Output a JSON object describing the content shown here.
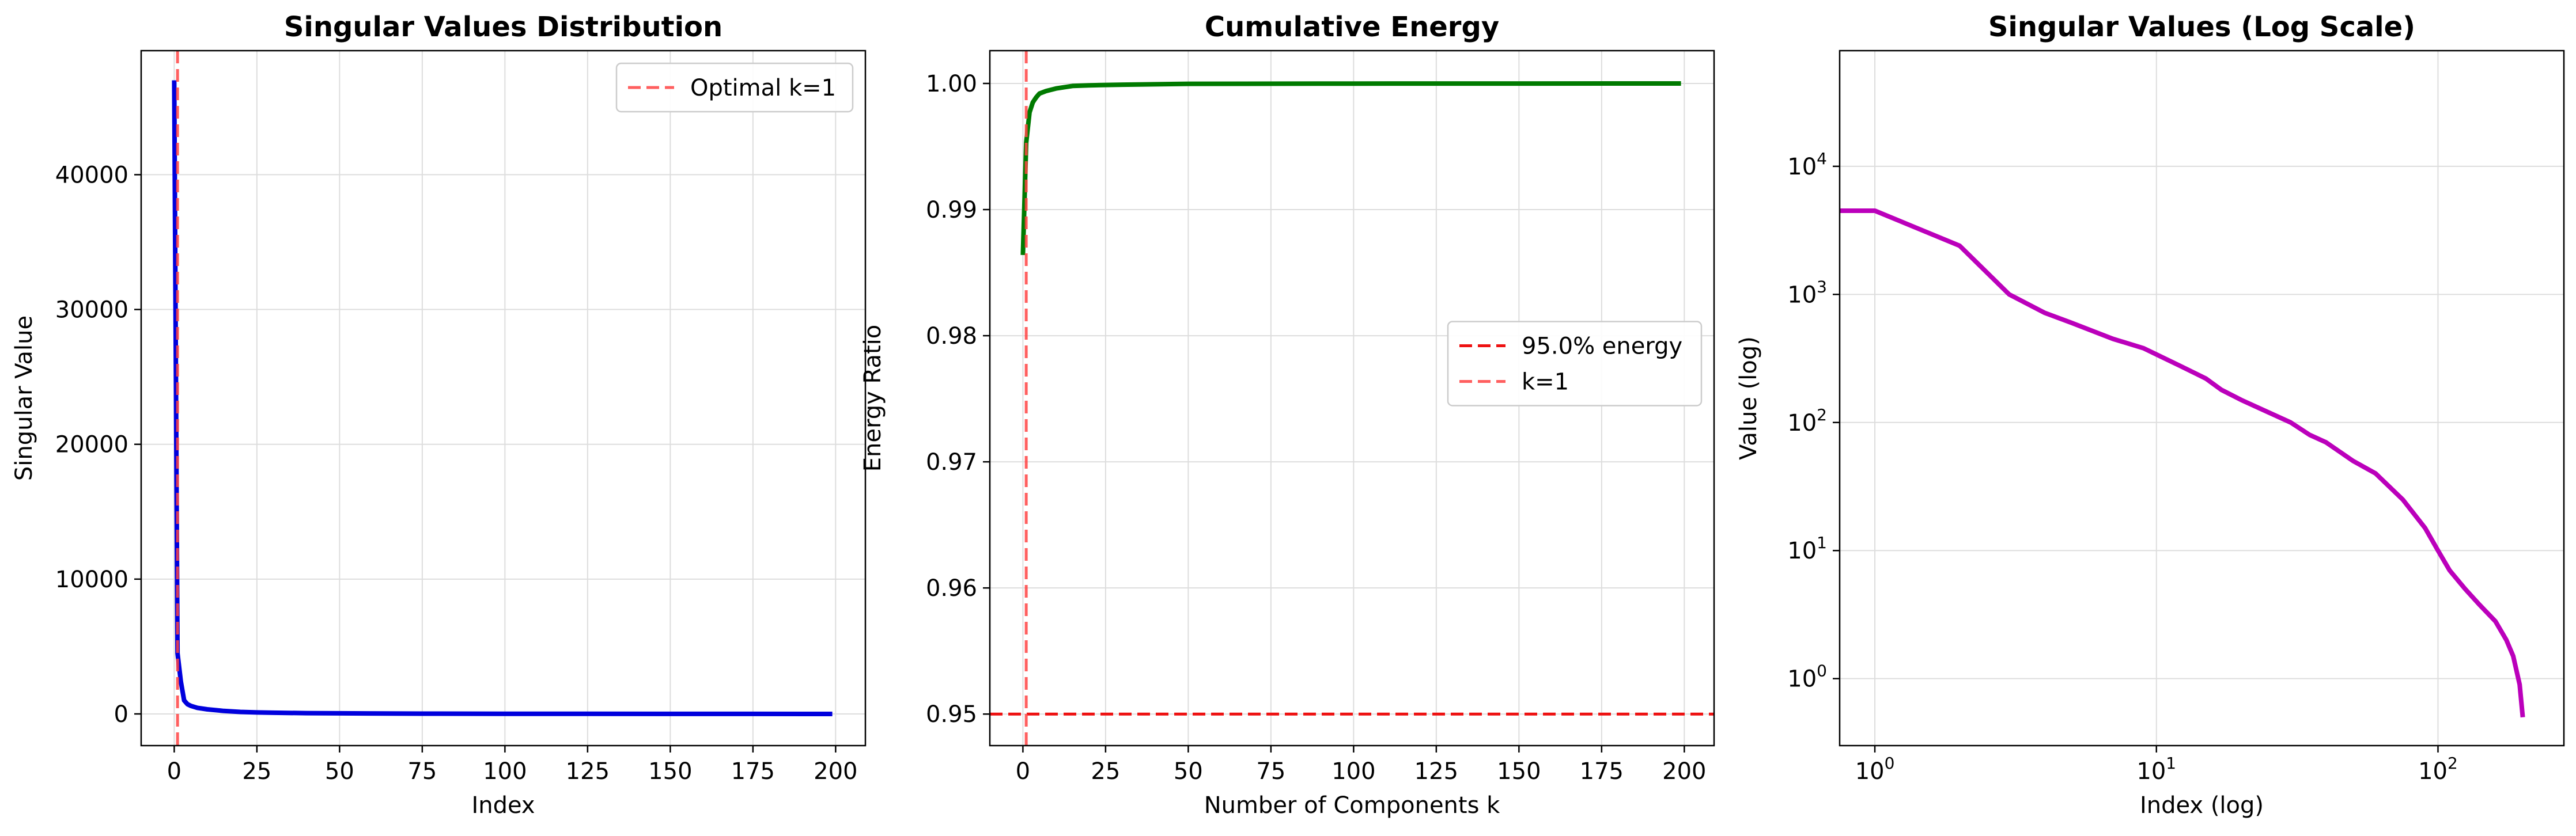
{
  "chart_data": [
    {
      "type": "line",
      "title": "Singular Values Distribution",
      "xlabel": "Index",
      "ylabel": "Singular Value",
      "xlim": [
        -10,
        209
      ],
      "ylim": [
        -2350,
        49200
      ],
      "xticks": [
        0,
        25,
        50,
        75,
        100,
        125,
        150,
        175,
        200
      ],
      "yticks": [
        0,
        10000,
        20000,
        30000,
        40000
      ],
      "grid": true,
      "legend_position": "top-right",
      "colors": {
        "series": "#0000dd",
        "marker": "#ff4444"
      },
      "series": [
        {
          "x": [
            0,
            1,
            2,
            3,
            4,
            5,
            7,
            10,
            15,
            20,
            25,
            30,
            40,
            50,
            75,
            100,
            125,
            150,
            175,
            199
          ],
          "values": [
            47000,
            4500,
            2400,
            1000,
            720,
            600,
            450,
            340,
            220,
            150,
            110,
            90,
            60,
            45,
            22,
            12,
            6,
            3.5,
            1.5,
            0.5
          ]
        }
      ],
      "reference_lines": [
        {
          "orientation": "vertical",
          "value": 1,
          "style": "dashed",
          "label": "Optimal k=1"
        }
      ]
    },
    {
      "type": "line",
      "title": "Cumulative Energy",
      "xlabel": "Number of Components k",
      "ylabel": "Energy Ratio",
      "xlim": [
        -10,
        209
      ],
      "ylim": [
        0.9475,
        1.0026
      ],
      "xticks": [
        0,
        25,
        50,
        75,
        100,
        125,
        150,
        175,
        200
      ],
      "yticks": [
        0.95,
        0.96,
        0.97,
        0.98,
        0.99,
        1.0
      ],
      "grid": true,
      "legend_position": "center-right",
      "colors": {
        "series": "#007a00",
        "threshold": "#ee1111",
        "marker": "#ff4444"
      },
      "series": [
        {
          "x": [
            0,
            1,
            2,
            3,
            4,
            5,
            7,
            10,
            15,
            20,
            30,
            50,
            100,
            199
          ],
          "values": [
            0.9864,
            0.9953,
            0.9977,
            0.9985,
            0.9989,
            0.9992,
            0.9994,
            0.9996,
            0.9998,
            0.99985,
            0.9999,
            0.99997,
            0.99999,
            1.0
          ]
        }
      ],
      "reference_lines": [
        {
          "orientation": "horizontal",
          "value": 0.95,
          "style": "dashed",
          "label": "95.0% energy"
        },
        {
          "orientation": "vertical",
          "value": 1,
          "style": "dashed",
          "label": "k=1"
        }
      ]
    },
    {
      "type": "line",
      "title": "Singular Values (Log Scale)",
      "xlabel": "Index (log)",
      "ylabel": "Value (log)",
      "xscale": "log",
      "yscale": "log",
      "xlim": [
        0.75,
        280
      ],
      "ylim": [
        0.3,
        80000
      ],
      "xticks": [
        {
          "value": 1,
          "base": "10",
          "exp": "0"
        },
        {
          "value": 10,
          "base": "10",
          "exp": "1"
        },
        {
          "value": 100,
          "base": "10",
          "exp": "2"
        }
      ],
      "yticks": [
        {
          "value": 1,
          "base": "10",
          "exp": "0"
        },
        {
          "value": 10,
          "base": "10",
          "exp": "1"
        },
        {
          "value": 100,
          "base": "10",
          "exp": "2"
        },
        {
          "value": 1000,
          "base": "10",
          "exp": "3"
        },
        {
          "value": 10000,
          "base": "10",
          "exp": "4"
        }
      ],
      "grid": true,
      "colors": {
        "series": "#bb00bb"
      },
      "series": [
        {
          "x": [
            0.75,
            1,
            2,
            3,
            4,
            5,
            7,
            9,
            10,
            12,
            15,
            17,
            20,
            25,
            30,
            35,
            40,
            50,
            60,
            75,
            90,
            100,
            110,
            125,
            140,
            160,
            175,
            185,
            195,
            200
          ],
          "values": [
            4500,
            4500,
            2400,
            1000,
            720,
            600,
            450,
            380,
            340,
            280,
            220,
            180,
            150,
            120,
            100,
            80,
            70,
            50,
            40,
            25,
            15,
            10,
            7,
            5,
            3.8,
            2.8,
            2.0,
            1.5,
            0.9,
            0.5
          ]
        }
      ]
    }
  ]
}
